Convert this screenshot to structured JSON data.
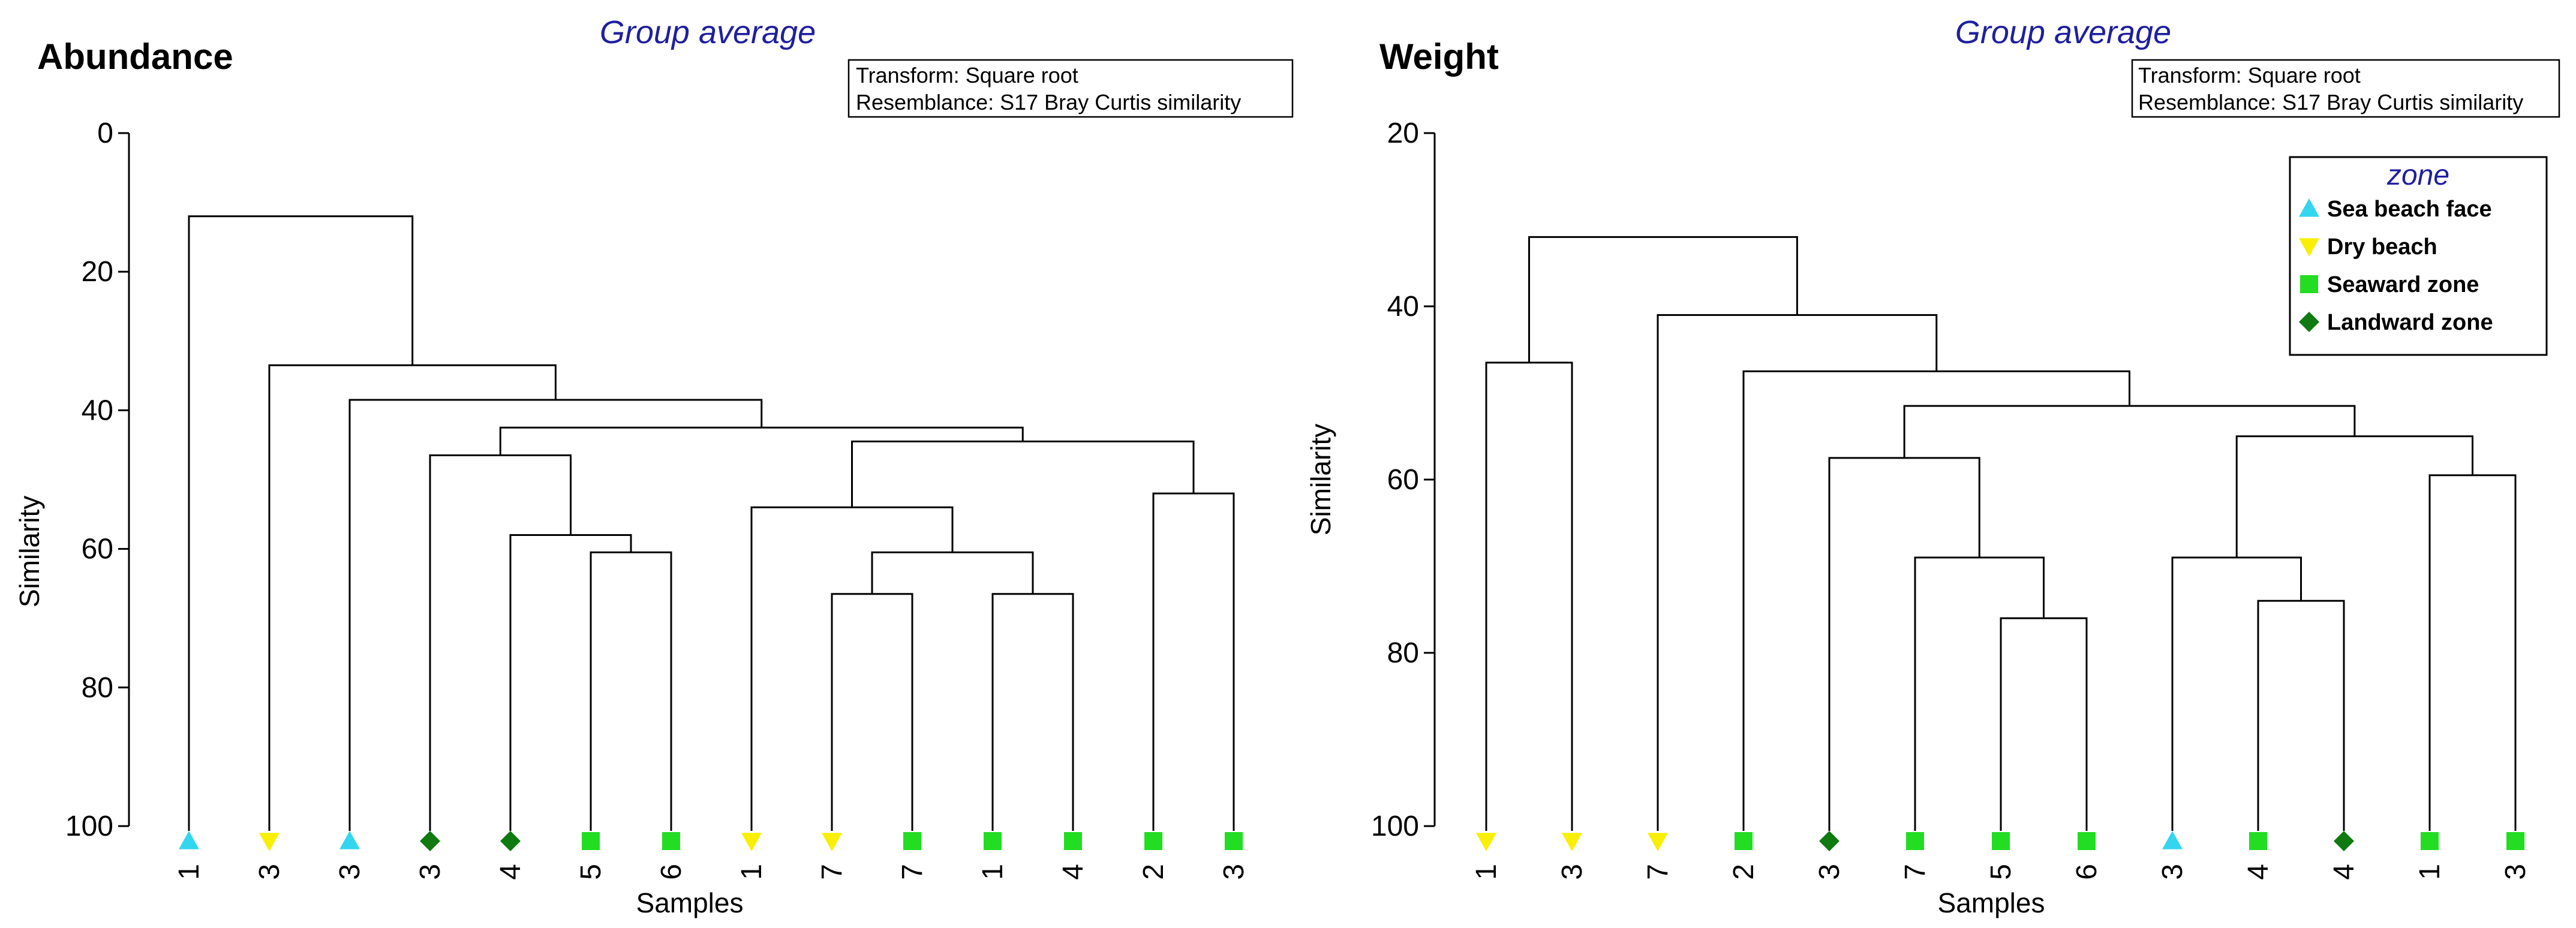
{
  "colors": {
    "Sea beach face": "#33d6ee",
    "Dry beach": "#f8f000",
    "Seaward zone": "#22dd22",
    "Landward zone": "#0f7a10",
    "method_title": "#1f1fa0"
  },
  "legend": {
    "title": "zone",
    "items": [
      {
        "label": "Sea beach face",
        "marker": "triangle-up"
      },
      {
        "label": "Dry beach",
        "marker": "triangle-down"
      },
      {
        "label": "Seaward zone",
        "marker": "square"
      },
      {
        "label": "Landward zone",
        "marker": "diamond"
      }
    ]
  },
  "chart_data": [
    {
      "type": "dendrogram",
      "title": "Abundance",
      "method": "Group average",
      "notes": [
        "Transform: Square root",
        "Resemblance: S17 Bray Curtis similarity"
      ],
      "ylabel": "Similarity",
      "xlabel": "Samples",
      "ylim": [
        0,
        100
      ],
      "yticks": [
        0,
        20,
        40,
        60,
        80,
        100
      ],
      "leaves": [
        {
          "label": "1",
          "zone": "Sea beach face"
        },
        {
          "label": "3",
          "zone": "Dry beach"
        },
        {
          "label": "3",
          "zone": "Sea beach face"
        },
        {
          "label": "3",
          "zone": "Landward zone"
        },
        {
          "label": "4",
          "zone": "Landward zone"
        },
        {
          "label": "5",
          "zone": "Seaward zone"
        },
        {
          "label": "6",
          "zone": "Seaward zone"
        },
        {
          "label": "1",
          "zone": "Dry beach"
        },
        {
          "label": "7",
          "zone": "Dry beach"
        },
        {
          "label": "7",
          "zone": "Seaward zone"
        },
        {
          "label": "1",
          "zone": "Seaward zone"
        },
        {
          "label": "4",
          "zone": "Seaward zone"
        },
        {
          "label": "2",
          "zone": "Seaward zone"
        },
        {
          "label": "3",
          "zone": "Seaward zone"
        }
      ],
      "merges": [
        {
          "left": 5,
          "right": 6,
          "similarity": 60.5
        },
        {
          "left": 4,
          "right": "m0",
          "similarity": 58
        },
        {
          "left": 3,
          "right": "m1",
          "similarity": 46.5
        },
        {
          "left": 8,
          "right": 9,
          "similarity": 66.5
        },
        {
          "left": 10,
          "right": 11,
          "similarity": 66.5
        },
        {
          "left": "m3",
          "right": "m4",
          "similarity": 60.5
        },
        {
          "left": 7,
          "right": "m5",
          "similarity": 54
        },
        {
          "left": 12,
          "right": 13,
          "similarity": 52
        },
        {
          "left": "m6",
          "right": "m7",
          "similarity": 44.5
        },
        {
          "left": "m2",
          "right": "m8",
          "similarity": 42.5
        },
        {
          "left": 2,
          "right": "m9",
          "similarity": 38.5
        },
        {
          "left": 1,
          "right": "m10",
          "similarity": 33.5
        },
        {
          "left": 0,
          "right": "m11",
          "similarity": 12
        }
      ]
    },
    {
      "type": "dendrogram",
      "title": "Weight",
      "method": "Group average",
      "notes": [
        "Transform: Square root",
        "Resemblance: S17 Bray Curtis similarity"
      ],
      "ylabel": "Similarity",
      "xlabel": "Samples",
      "ylim": [
        20,
        100
      ],
      "yticks": [
        20,
        40,
        60,
        80,
        100
      ],
      "leaves": [
        {
          "label": "1",
          "zone": "Dry beach"
        },
        {
          "label": "3",
          "zone": "Dry beach"
        },
        {
          "label": "7",
          "zone": "Dry beach"
        },
        {
          "label": "2",
          "zone": "Seaward zone"
        },
        {
          "label": "3",
          "zone": "Landward zone"
        },
        {
          "label": "7",
          "zone": "Seaward zone"
        },
        {
          "label": "5",
          "zone": "Seaward zone"
        },
        {
          "label": "6",
          "zone": "Seaward zone"
        },
        {
          "label": "3",
          "zone": "Sea beach face"
        },
        {
          "label": "4",
          "zone": "Seaward zone"
        },
        {
          "label": "4",
          "zone": "Landward zone"
        },
        {
          "label": "1",
          "zone": "Seaward zone"
        },
        {
          "label": "3",
          "zone": "Seaward zone"
        }
      ],
      "merges": [
        {
          "left": 0,
          "right": 1,
          "similarity": 46.5
        },
        {
          "left": 6,
          "right": 7,
          "similarity": 76
        },
        {
          "left": 5,
          "right": "m1",
          "similarity": 69
        },
        {
          "left": 4,
          "right": "m2",
          "similarity": 57.5
        },
        {
          "left": 9,
          "right": 10,
          "similarity": 74
        },
        {
          "left": 8,
          "right": "m4",
          "similarity": 69
        },
        {
          "left": 11,
          "right": 12,
          "similarity": 59.5
        },
        {
          "left": "m5",
          "right": "m6",
          "similarity": 55
        },
        {
          "left": "m3",
          "right": "m7",
          "similarity": 51.5
        },
        {
          "left": 3,
          "right": "m8",
          "similarity": 47.5
        },
        {
          "left": 2,
          "right": "m9",
          "similarity": 41
        },
        {
          "left": "m0",
          "right": "m10",
          "similarity": 32
        }
      ]
    }
  ]
}
